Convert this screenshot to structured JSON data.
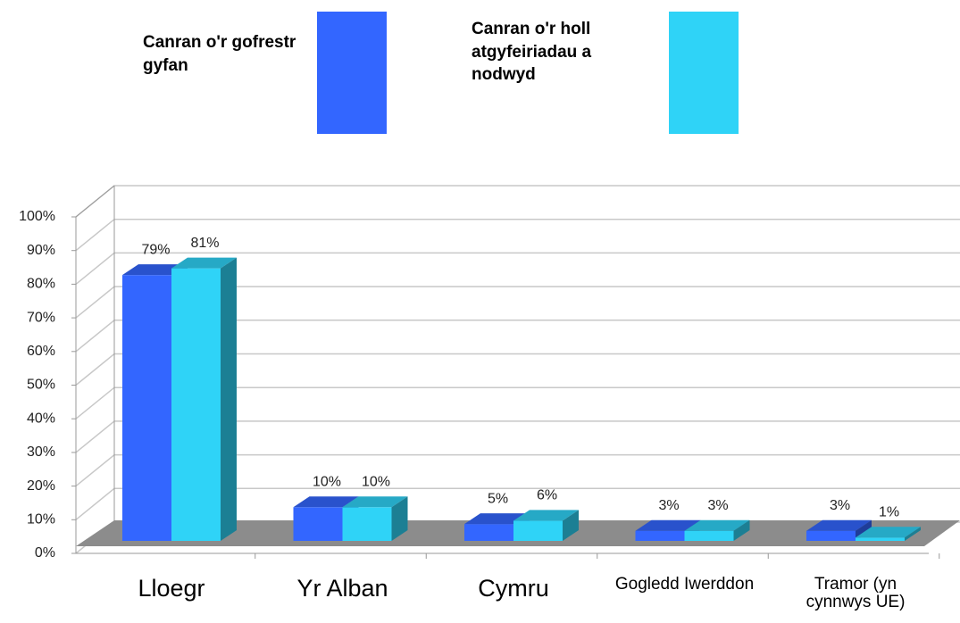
{
  "chart_data": {
    "type": "bar",
    "categories": [
      "Lloegr",
      "Yr Alban",
      "Cymru",
      "Gogledd Iwerddon",
      "Tramor (yn cynnwys UE)"
    ],
    "series": [
      {
        "name": "Canran o'r gofrestr gyfan",
        "color": "#3366ff",
        "values": [
          79,
          10,
          5,
          3,
          3
        ],
        "value_labels": [
          "79%",
          "10%",
          "5%",
          "3%",
          "3%"
        ]
      },
      {
        "name": "Canran o'r holl atgyfeiriadau a nodwyd",
        "color": "#2fd3f7",
        "values": [
          81,
          10,
          6,
          3,
          1
        ],
        "value_labels": [
          "81%",
          "10%",
          "6%",
          "3%",
          "1%"
        ]
      }
    ],
    "ylim": [
      0,
      100
    ],
    "yticks": [
      {
        "value": 0,
        "label": "0%"
      },
      {
        "value": 10,
        "label": "10%"
      },
      {
        "value": 20,
        "label": "20%"
      },
      {
        "value": 30,
        "label": "30%"
      },
      {
        "value": 40,
        "label": "40%"
      },
      {
        "value": 50,
        "label": "50%"
      },
      {
        "value": 60,
        "label": "60%"
      },
      {
        "value": 70,
        "label": "70%"
      },
      {
        "value": 80,
        "label": "80%"
      },
      {
        "value": 90,
        "label": "90%"
      },
      {
        "value": 100,
        "label": "100%"
      }
    ],
    "grid": true
  }
}
